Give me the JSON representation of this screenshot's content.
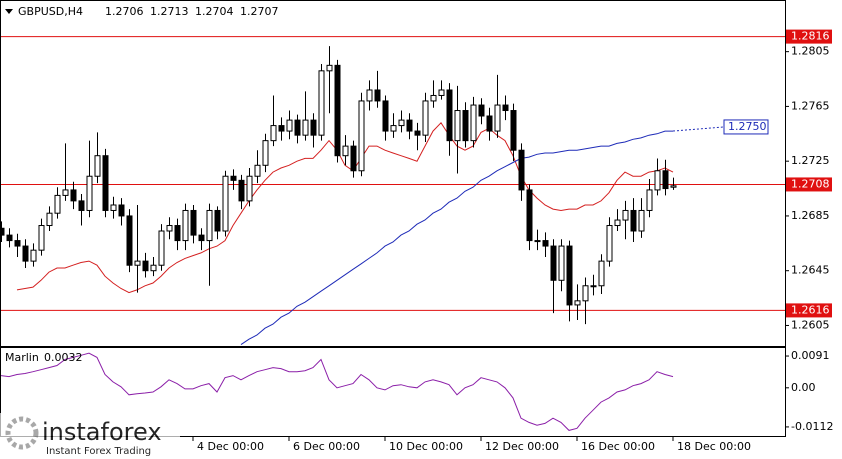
{
  "chart_data": [
    {
      "type": "candlestick",
      "title": "GBPUSD,H4",
      "ylim": [
        1.259,
        1.2842
      ],
      "yticks": [
        1.2805,
        1.2765,
        1.2725,
        1.2685,
        1.2645,
        1.2605
      ],
      "xlim": [
        0,
        98
      ],
      "xticks": [
        {
          "value": 24,
          "label": "4 Dec 00:00"
        },
        {
          "value": 36,
          "label": "6 Dec 00:00"
        },
        {
          "value": 48,
          "label": "10 Dec 00:00"
        },
        {
          "value": 60,
          "label": "12 Dec 00:00"
        },
        {
          "value": 72,
          "label": "16 Dec 00:00"
        },
        {
          "value": 84,
          "label": "18 Dec 00:00"
        }
      ],
      "bull_color": "#ffffff",
      "bear_color": "#000000",
      "edge_color": "#000000",
      "open": [
        1.2676,
        1.2671,
        1.2667,
        1.2663,
        1.2652,
        1.266,
        1.2678,
        1.2687,
        1.27,
        1.2704,
        1.2696,
        1.2689,
        1.2714,
        1.2729,
        1.2689,
        1.2693,
        1.2685,
        1.2649,
        1.2652,
        1.2645,
        1.2649,
        1.2674,
        1.2678,
        1.2667,
        1.2689,
        1.2671,
        1.2667,
        1.2689,
        1.2674,
        1.2714,
        1.2711,
        1.2696,
        1.2714,
        1.2722,
        1.274,
        1.2751,
        1.2747,
        1.2755,
        1.2744,
        1.2755,
        1.2744,
        1.2791,
        1.2795,
        1.2729,
        1.2736,
        1.2718,
        1.2769,
        1.2777,
        1.2769,
        1.2747,
        1.2751,
        1.2755,
        1.2747,
        1.2744,
        1.2769,
        1.2773,
        1.2777,
        1.274,
        1.2762,
        1.274,
        1.2766,
        1.2758,
        1.2747,
        1.2766,
        1.2762,
        1.2733,
        1.2704,
        1.2667,
        1.2667,
        1.2663,
        1.2638,
        1.2663,
        1.262,
        1.2623,
        1.2634,
        1.2634,
        1.2652,
        1.2678,
        1.2682,
        1.2689,
        1.2674,
        1.2689,
        1.2704,
        1.2718,
        1.2706
      ],
      "high": [
        1.2681,
        1.2676,
        1.2672,
        1.2668,
        1.2665,
        1.2683,
        1.2692,
        1.2706,
        1.2738,
        1.271,
        1.2701,
        1.274,
        1.2746,
        1.2734,
        1.2699,
        1.2698,
        1.269,
        1.2693,
        1.2658,
        1.2655,
        1.2679,
        1.2684,
        1.2683,
        1.2694,
        1.2693,
        1.2676,
        1.2694,
        1.2692,
        1.2718,
        1.2719,
        1.2715,
        1.272,
        1.2733,
        1.2745,
        1.2773,
        1.2757,
        1.2762,
        1.2759,
        1.2776,
        1.276,
        1.2796,
        1.2809,
        1.2799,
        1.2744,
        1.274,
        1.2775,
        1.2784,
        1.2791,
        1.2773,
        1.276,
        1.2762,
        1.276,
        1.2753,
        1.2775,
        1.2784,
        1.2784,
        1.2782,
        1.278,
        1.2768,
        1.2772,
        1.2771,
        1.2764,
        1.2788,
        1.2773,
        1.2767,
        1.2738,
        1.2708,
        1.2675,
        1.2673,
        1.2668,
        1.2668,
        1.2667,
        1.2635,
        1.264,
        1.2642,
        1.2657,
        1.2684,
        1.269,
        1.2696,
        1.2698,
        1.2698,
        1.2712,
        1.2727,
        1.2726,
        1.2713
      ],
      "low": [
        1.2666,
        1.2662,
        1.2655,
        1.2647,
        1.2648,
        1.2656,
        1.2674,
        1.2683,
        1.2696,
        1.269,
        1.2678,
        1.2684,
        1.2709,
        1.2684,
        1.2683,
        1.2678,
        1.2644,
        1.2629,
        1.264,
        1.2641,
        1.2645,
        1.2668,
        1.266,
        1.266,
        1.2665,
        1.266,
        1.2634,
        1.2668,
        1.267,
        1.2704,
        1.269,
        1.2692,
        1.2709,
        1.2717,
        1.2736,
        1.274,
        1.2741,
        1.2738,
        1.274,
        1.2735,
        1.274,
        1.276,
        1.2724,
        1.2722,
        1.2713,
        1.2714,
        1.2762,
        1.2764,
        1.274,
        1.2742,
        1.2746,
        1.2741,
        1.2733,
        1.2739,
        1.2764,
        1.277,
        1.2729,
        1.2716,
        1.2735,
        1.2735,
        1.2752,
        1.274,
        1.2742,
        1.2755,
        1.2725,
        1.2696,
        1.266,
        1.266,
        1.2655,
        1.2614,
        1.263,
        1.2608,
        1.2609,
        1.2606,
        1.2627,
        1.2628,
        1.2648,
        1.2674,
        1.2668,
        1.2666,
        1.2669,
        1.2684,
        1.27,
        1.27,
        1.2704
      ],
      "close": [
        1.2671,
        1.2667,
        1.2663,
        1.2652,
        1.266,
        1.2678,
        1.2687,
        1.27,
        1.2704,
        1.2696,
        1.2689,
        1.2714,
        1.2729,
        1.2689,
        1.2693,
        1.2685,
        1.2649,
        1.2652,
        1.2645,
        1.2649,
        1.2674,
        1.2678,
        1.2667,
        1.2689,
        1.2671,
        1.2667,
        1.2689,
        1.2674,
        1.2714,
        1.2711,
        1.2696,
        1.2714,
        1.2722,
        1.274,
        1.2751,
        1.2747,
        1.2755,
        1.2744,
        1.2755,
        1.2744,
        1.2791,
        1.2795,
        1.2729,
        1.2736,
        1.2718,
        1.2769,
        1.2777,
        1.2769,
        1.2747,
        1.2751,
        1.2755,
        1.2747,
        1.2744,
        1.2769,
        1.2773,
        1.2777,
        1.274,
        1.2762,
        1.274,
        1.2766,
        1.2758,
        1.2747,
        1.2766,
        1.2762,
        1.2733,
        1.2704,
        1.2667,
        1.2667,
        1.2663,
        1.2638,
        1.2663,
        1.262,
        1.2623,
        1.2634,
        1.2634,
        1.2652,
        1.2678,
        1.2682,
        1.2689,
        1.2674,
        1.2689,
        1.2704,
        1.2718,
        1.2705,
        1.2707
      ],
      "lines": [
        {
          "color": "#d42020",
          "values": [
            null,
            null,
            1.2631,
            1.2632,
            1.2633,
            1.2638,
            1.2644,
            1.2647,
            1.2647,
            1.2649,
            1.2651,
            1.2652,
            1.2649,
            1.2641,
            1.2636,
            1.2632,
            1.2629,
            1.2631,
            1.2634,
            1.2636,
            1.2641,
            1.2647,
            1.2651,
            1.2654,
            1.2656,
            1.2658,
            1.2661,
            1.2663,
            1.2667,
            1.2678,
            1.2687,
            1.2696,
            1.2704,
            1.2711,
            1.2717,
            1.272,
            1.2722,
            1.2725,
            1.2727,
            1.2727,
            1.2733,
            1.274,
            1.2733,
            1.2722,
            1.2718,
            1.2727,
            1.2736,
            1.2736,
            1.2733,
            1.2731,
            1.2729,
            1.2727,
            1.2725,
            1.2736,
            1.2747,
            1.2753,
            1.2744,
            1.2736,
            1.2733,
            1.2736,
            1.2746,
            1.2749,
            1.2744,
            1.274,
            1.2729,
            1.2714,
            1.2704,
            1.2698,
            1.2693,
            1.269,
            1.2689,
            1.269,
            1.269,
            1.2693,
            1.2693,
            1.2696,
            1.2702,
            1.2711,
            1.2717,
            1.2714,
            1.2714,
            1.2717,
            1.2718,
            1.272,
            1.2717
          ]
        },
        {
          "color": "#1e2bb8",
          "values": [
            null,
            null,
            null,
            null,
            null,
            null,
            null,
            null,
            null,
            null,
            null,
            null,
            null,
            null,
            null,
            null,
            null,
            null,
            null,
            null,
            null,
            null,
            null,
            null,
            null,
            null,
            null,
            null,
            null,
            null,
            1.2591,
            1.2595,
            1.2598,
            1.2603,
            1.2606,
            1.2611,
            1.2614,
            1.2619,
            1.2622,
            1.2626,
            1.263,
            1.2634,
            1.2638,
            1.2642,
            1.2646,
            1.265,
            1.2654,
            1.2658,
            1.2663,
            1.2666,
            1.2671,
            1.2674,
            1.2679,
            1.2682,
            1.2687,
            1.269,
            1.2695,
            1.2698,
            1.2703,
            1.2706,
            1.2711,
            1.2714,
            1.2718,
            1.2721,
            1.2724,
            1.2727,
            1.2728,
            1.273,
            1.2731,
            1.2731,
            1.2732,
            1.2733,
            1.2733,
            1.2734,
            1.2735,
            1.2736,
            1.2736,
            1.2738,
            1.2739,
            1.2741,
            1.2742,
            1.2744,
            1.2745,
            1.2747,
            1.2747
          ]
        }
      ],
      "projection": {
        "value": 1.275,
        "label": "1.2750",
        "color": "#1e2bb8"
      },
      "levels": [
        {
          "value": 1.2816,
          "color": "#e01010"
        },
        {
          "value": 1.2708,
          "color": "#e01010"
        },
        {
          "value": 1.2616,
          "color": "#e01010"
        }
      ]
    },
    {
      "type": "line",
      "title": "Marlin",
      "color": "#8b1fa8",
      "ylim": [
        -0.0138,
        0.0114
      ],
      "yticks": [
        0.0091,
        {
          "value": 0,
          "label": "0.00"
        },
        -0.0112
      ],
      "values": [
        0.0035,
        0.0032,
        0.0038,
        0.0041,
        0.0046,
        0.0052,
        0.0058,
        0.0064,
        0.0081,
        0.0087,
        0.0093,
        0.0099,
        0.0087,
        0.0038,
        0.0017,
        0.0003,
        -0.002,
        -0.0017,
        -0.0015,
        -0.0012,
        0.0003,
        0.0023,
        0.0012,
        -0.0003,
        -0.0003,
        0.0006,
        0.0012,
        -0.0012,
        0.0029,
        0.0035,
        0.0023,
        0.0035,
        0.0046,
        0.0052,
        0.0058,
        0.0055,
        0.0046,
        0.0046,
        0.0049,
        0.0058,
        0.0081,
        0.0023,
        0.0,
        0.0006,
        0.0012,
        0.0038,
        0.0023,
        0.0,
        -0.0006,
        0.0006,
        0.0009,
        0.0003,
        0.0,
        0.0017,
        0.0023,
        0.0017,
        0.0009,
        -0.002,
        0.0,
        0.0009,
        0.0029,
        0.0023,
        0.0017,
        0.0,
        -0.0029,
        -0.0087,
        -0.0099,
        -0.0107,
        -0.0102,
        -0.0087,
        -0.0099,
        -0.0122,
        -0.0116,
        -0.0087,
        -0.0064,
        -0.0041,
        -0.0029,
        -0.0012,
        -0.0006,
        0.0006,
        0.0012,
        0.0023,
        0.0046,
        0.0038,
        0.0032
      ]
    }
  ],
  "watermark": {
    "brand": "instaforex",
    "tagline": "Instant Forex Trading"
  }
}
